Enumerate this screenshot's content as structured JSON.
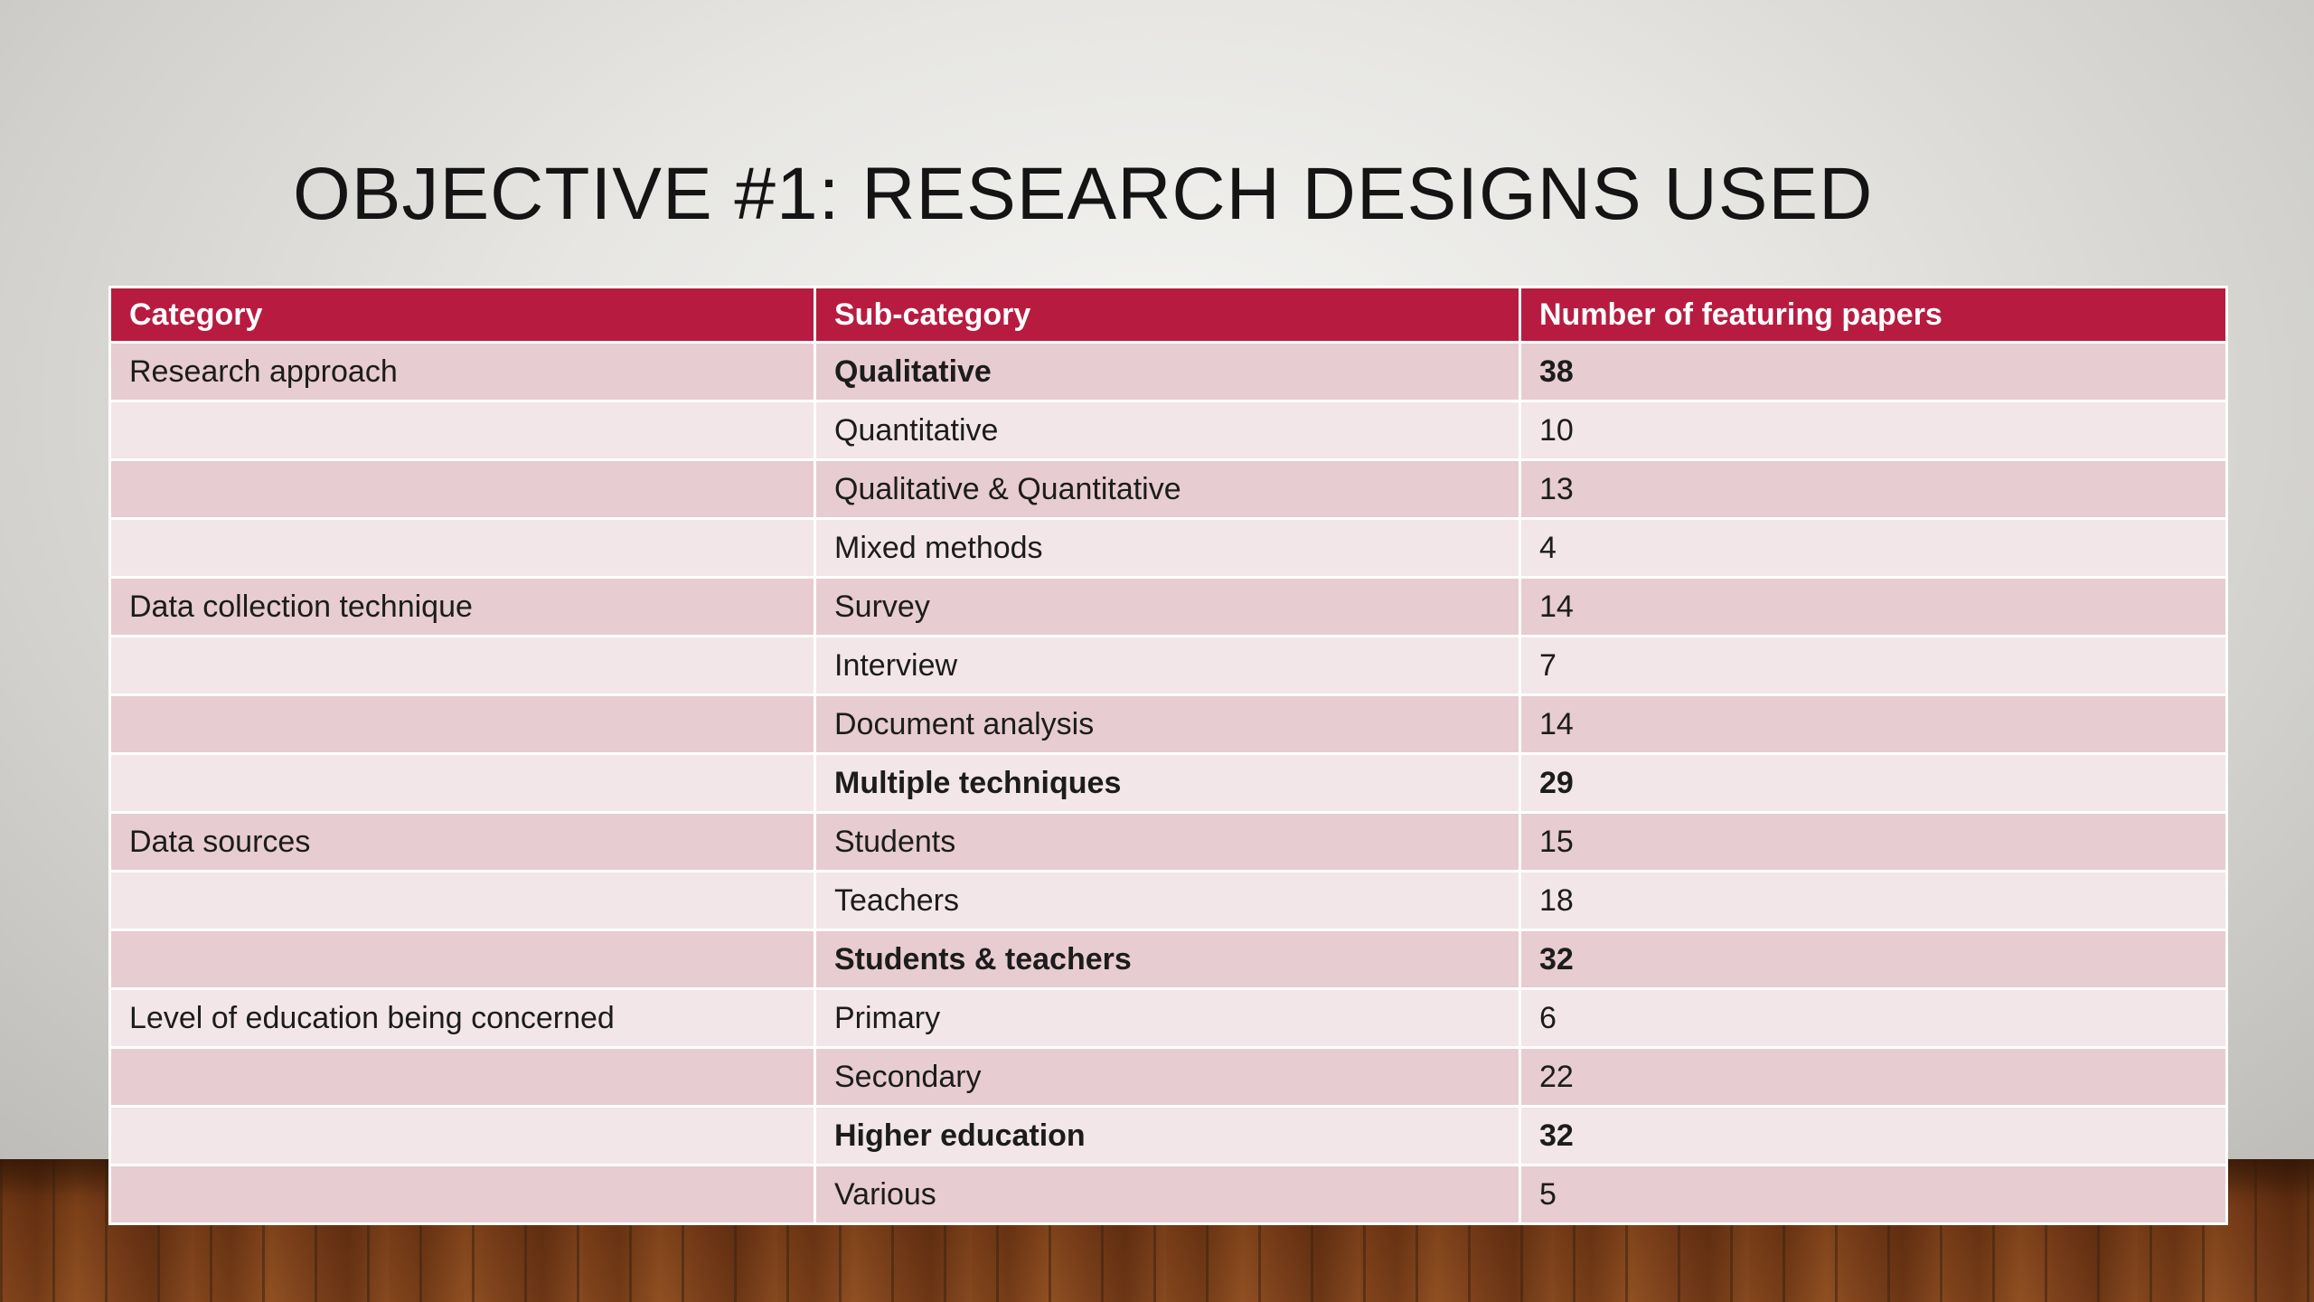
{
  "slide": {
    "title": "OBJECTIVE #1: RESEARCH DESIGNS USED"
  },
  "table": {
    "headers": [
      "Category",
      "Sub-category",
      "Number of featuring papers"
    ],
    "rows": [
      {
        "category": "Research approach",
        "subcategory": "Qualitative",
        "count": "38",
        "bold": true
      },
      {
        "category": "",
        "subcategory": "Quantitative",
        "count": "10",
        "bold": false
      },
      {
        "category": "",
        "subcategory": "Qualitative & Quantitative",
        "count": "13",
        "bold": false
      },
      {
        "category": "",
        "subcategory": "Mixed methods",
        "count": "4",
        "bold": false
      },
      {
        "category": "Data collection technique",
        "subcategory": "Survey",
        "count": "14",
        "bold": false
      },
      {
        "category": "",
        "subcategory": "Interview",
        "count": "7",
        "bold": false
      },
      {
        "category": "",
        "subcategory": "Document analysis",
        "count": "14",
        "bold": false
      },
      {
        "category": "",
        "subcategory": "Multiple techniques",
        "count": "29",
        "bold": true
      },
      {
        "category": "Data sources",
        "subcategory": "Students",
        "count": "15",
        "bold": false
      },
      {
        "category": "",
        "subcategory": "Teachers",
        "count": "18",
        "bold": false
      },
      {
        "category": "",
        "subcategory": "Students & teachers",
        "count": "32",
        "bold": true
      },
      {
        "category": "Level of education being concerned",
        "subcategory": "Primary",
        "count": "6",
        "bold": false
      },
      {
        "category": "",
        "subcategory": "Secondary",
        "count": "22",
        "bold": false
      },
      {
        "category": "",
        "subcategory": "Higher education",
        "count": "32",
        "bold": true
      },
      {
        "category": "",
        "subcategory": "Various",
        "count": "5",
        "bold": false
      }
    ]
  },
  "colors": {
    "header_bg": "#b71c40",
    "row_odd": "#e7ccd1",
    "row_even": "#f3e6e8"
  }
}
